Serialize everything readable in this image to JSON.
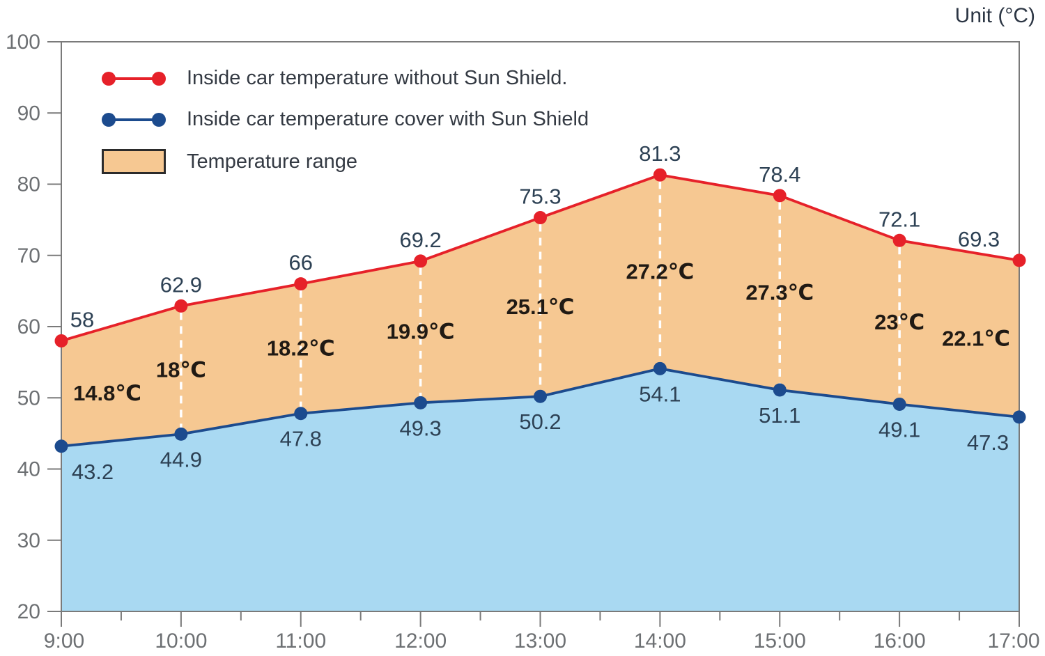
{
  "header": {
    "unit_label": "Unit (°C)"
  },
  "legend": {
    "items": [
      {
        "label": "Inside car temperature without Sun Shield.",
        "type": "line",
        "color": "#e62129"
      },
      {
        "label": "Inside car temperature cover with Sun Shield",
        "type": "line",
        "color": "#1c4b8e"
      },
      {
        "label": "Temperature range",
        "type": "box",
        "color": "#f6c892"
      }
    ]
  },
  "chart_data": {
    "type": "area",
    "title": "",
    "xlabel": "",
    "ylabel": "Unit (°C)",
    "x": [
      "9:00",
      "10:00",
      "11:00",
      "12:00",
      "13:00",
      "14:00",
      "15:00",
      "16:00",
      "17:00"
    ],
    "series": [
      {
        "name": "Inside car temperature without Sun Shield.",
        "color": "#e62129",
        "values": [
          58,
          62.9,
          66,
          69.2,
          75.3,
          81.3,
          78.4,
          72.1,
          69.3
        ]
      },
      {
        "name": "Inside car temperature cover with Sun Shield",
        "color": "#1c4b8e",
        "values": [
          43.2,
          44.9,
          47.8,
          49.3,
          50.2,
          54.1,
          51.1,
          49.1,
          47.3
        ]
      }
    ],
    "difference_labels": [
      "14.8℃",
      "18℃",
      "18.2℃",
      "19.9℃",
      "25.1℃",
      "27.2℃",
      "27.3℃",
      "23℃",
      "22.1℃"
    ],
    "ylim": [
      20,
      100
    ],
    "ytick_step": 10,
    "grid": false,
    "legend_position": "top-left",
    "fills": {
      "range_fill": "#f6c892",
      "below_fill": "#a9d9f2"
    },
    "style_colors": {
      "value_label": "#2d4154",
      "difference_label": "#201a14",
      "axis_text": "#6d7073",
      "frame": "#7a7a7a",
      "dashed_connector": "#ffffff"
    }
  }
}
